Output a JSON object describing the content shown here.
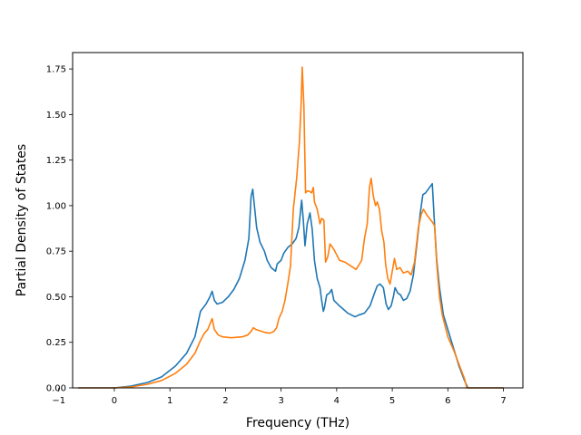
{
  "chart_data": {
    "type": "line",
    "title": "",
    "xlabel": "Frequency (THz)",
    "ylabel": "Partial Density of States",
    "xlim": [
      -0.75,
      7.35
    ],
    "ylim": [
      0.0,
      1.84
    ],
    "xticks": [
      -1,
      0,
      1,
      2,
      3,
      4,
      5,
      6,
      7
    ],
    "xtick_labels": [
      "−1",
      "0",
      "1",
      "2",
      "3",
      "4",
      "5",
      "6",
      "7"
    ],
    "yticks": [
      0.0,
      0.25,
      0.5,
      0.75,
      1.0,
      1.25,
      1.5,
      1.75
    ],
    "ytick_labels": [
      "0.00",
      "0.25",
      "0.50",
      "0.75",
      "1.00",
      "1.25",
      "1.50",
      "1.75"
    ],
    "grid": false,
    "legend": "none",
    "series": [
      {
        "color": "#1f77b4",
        "points": [
          [
            -0.65,
            0.0
          ],
          [
            0.0,
            0.0
          ],
          [
            0.3,
            0.01
          ],
          [
            0.6,
            0.03
          ],
          [
            0.85,
            0.06
          ],
          [
            1.1,
            0.12
          ],
          [
            1.3,
            0.19
          ],
          [
            1.45,
            0.28
          ],
          [
            1.55,
            0.42
          ],
          [
            1.65,
            0.46
          ],
          [
            1.72,
            0.5
          ],
          [
            1.76,
            0.53
          ],
          [
            1.8,
            0.48
          ],
          [
            1.85,
            0.46
          ],
          [
            1.95,
            0.47
          ],
          [
            2.05,
            0.5
          ],
          [
            2.15,
            0.54
          ],
          [
            2.25,
            0.6
          ],
          [
            2.35,
            0.7
          ],
          [
            2.42,
            0.82
          ],
          [
            2.46,
            1.05
          ],
          [
            2.49,
            1.09
          ],
          [
            2.52,
            1.0
          ],
          [
            2.56,
            0.88
          ],
          [
            2.62,
            0.8
          ],
          [
            2.7,
            0.75
          ],
          [
            2.75,
            0.7
          ],
          [
            2.82,
            0.66
          ],
          [
            2.9,
            0.64
          ],
          [
            2.93,
            0.68
          ],
          [
            3.0,
            0.7
          ],
          [
            3.05,
            0.74
          ],
          [
            3.12,
            0.77
          ],
          [
            3.2,
            0.79
          ],
          [
            3.27,
            0.82
          ],
          [
            3.32,
            0.88
          ],
          [
            3.37,
            1.03
          ],
          [
            3.4,
            0.92
          ],
          [
            3.43,
            0.78
          ],
          [
            3.47,
            0.9
          ],
          [
            3.52,
            0.96
          ],
          [
            3.56,
            0.87
          ],
          [
            3.6,
            0.7
          ],
          [
            3.65,
            0.6
          ],
          [
            3.7,
            0.55
          ],
          [
            3.73,
            0.48
          ],
          [
            3.76,
            0.42
          ],
          [
            3.78,
            0.44
          ],
          [
            3.82,
            0.51
          ],
          [
            3.87,
            0.52
          ],
          [
            3.91,
            0.54
          ],
          [
            3.95,
            0.48
          ],
          [
            4.05,
            0.45
          ],
          [
            4.2,
            0.41
          ],
          [
            4.33,
            0.39
          ],
          [
            4.4,
            0.4
          ],
          [
            4.5,
            0.41
          ],
          [
            4.6,
            0.45
          ],
          [
            4.68,
            0.52
          ],
          [
            4.73,
            0.56
          ],
          [
            4.78,
            0.57
          ],
          [
            4.84,
            0.55
          ],
          [
            4.89,
            0.46
          ],
          [
            4.93,
            0.43
          ],
          [
            4.98,
            0.45
          ],
          [
            5.02,
            0.5
          ],
          [
            5.05,
            0.55
          ],
          [
            5.1,
            0.52
          ],
          [
            5.15,
            0.51
          ],
          [
            5.2,
            0.48
          ],
          [
            5.26,
            0.49
          ],
          [
            5.32,
            0.53
          ],
          [
            5.38,
            0.62
          ],
          [
            5.44,
            0.78
          ],
          [
            5.5,
            0.95
          ],
          [
            5.55,
            1.06
          ],
          [
            5.6,
            1.07
          ],
          [
            5.67,
            1.1
          ],
          [
            5.72,
            1.12
          ],
          [
            5.76,
            0.9
          ],
          [
            5.8,
            0.7
          ],
          [
            5.85,
            0.55
          ],
          [
            5.92,
            0.4
          ],
          [
            6.0,
            0.32
          ],
          [
            6.1,
            0.22
          ],
          [
            6.2,
            0.12
          ],
          [
            6.3,
            0.04
          ],
          [
            6.36,
            0.0
          ],
          [
            7.0,
            0.0
          ]
        ]
      },
      {
        "color": "#ff7f0e",
        "points": [
          [
            -0.65,
            0.0
          ],
          [
            0.0,
            0.0
          ],
          [
            0.3,
            0.005
          ],
          [
            0.6,
            0.02
          ],
          [
            0.85,
            0.04
          ],
          [
            1.1,
            0.08
          ],
          [
            1.3,
            0.13
          ],
          [
            1.45,
            0.19
          ],
          [
            1.55,
            0.26
          ],
          [
            1.62,
            0.3
          ],
          [
            1.68,
            0.32
          ],
          [
            1.72,
            0.35
          ],
          [
            1.76,
            0.38
          ],
          [
            1.8,
            0.32
          ],
          [
            1.87,
            0.29
          ],
          [
            1.95,
            0.28
          ],
          [
            2.1,
            0.275
          ],
          [
            2.3,
            0.28
          ],
          [
            2.4,
            0.29
          ],
          [
            2.46,
            0.31
          ],
          [
            2.5,
            0.33
          ],
          [
            2.55,
            0.32
          ],
          [
            2.7,
            0.305
          ],
          [
            2.8,
            0.3
          ],
          [
            2.87,
            0.31
          ],
          [
            2.92,
            0.33
          ],
          [
            2.96,
            0.38
          ],
          [
            3.02,
            0.42
          ],
          [
            3.07,
            0.48
          ],
          [
            3.12,
            0.57
          ],
          [
            3.17,
            0.67
          ],
          [
            3.22,
            0.98
          ],
          [
            3.28,
            1.15
          ],
          [
            3.33,
            1.35
          ],
          [
            3.36,
            1.55
          ],
          [
            3.38,
            1.76
          ],
          [
            3.41,
            1.55
          ],
          [
            3.44,
            1.07
          ],
          [
            3.47,
            1.08
          ],
          [
            3.5,
            1.08
          ],
          [
            3.55,
            1.07
          ],
          [
            3.58,
            1.1
          ],
          [
            3.6,
            1.02
          ],
          [
            3.65,
            0.98
          ],
          [
            3.7,
            0.9
          ],
          [
            3.73,
            0.93
          ],
          [
            3.77,
            0.92
          ],
          [
            3.8,
            0.69
          ],
          [
            3.84,
            0.72
          ],
          [
            3.88,
            0.79
          ],
          [
            3.95,
            0.76
          ],
          [
            4.05,
            0.7
          ],
          [
            4.15,
            0.69
          ],
          [
            4.25,
            0.67
          ],
          [
            4.35,
            0.65
          ],
          [
            4.45,
            0.7
          ],
          [
            4.5,
            0.82
          ],
          [
            4.55,
            0.9
          ],
          [
            4.59,
            1.1
          ],
          [
            4.62,
            1.15
          ],
          [
            4.66,
            1.05
          ],
          [
            4.7,
            1.0
          ],
          [
            4.73,
            1.02
          ],
          [
            4.77,
            0.98
          ],
          [
            4.81,
            0.86
          ],
          [
            4.85,
            0.8
          ],
          [
            4.88,
            0.68
          ],
          [
            4.92,
            0.6
          ],
          [
            4.96,
            0.57
          ],
          [
            5.0,
            0.64
          ],
          [
            5.04,
            0.71
          ],
          [
            5.08,
            0.65
          ],
          [
            5.14,
            0.66
          ],
          [
            5.2,
            0.63
          ],
          [
            5.28,
            0.64
          ],
          [
            5.34,
            0.62
          ],
          [
            5.4,
            0.69
          ],
          [
            5.47,
            0.88
          ],
          [
            5.52,
            0.95
          ],
          [
            5.56,
            0.98
          ],
          [
            5.62,
            0.95
          ],
          [
            5.72,
            0.91
          ],
          [
            5.76,
            0.89
          ],
          [
            5.8,
            0.68
          ],
          [
            5.85,
            0.5
          ],
          [
            5.9,
            0.4
          ],
          [
            6.0,
            0.28
          ],
          [
            6.1,
            0.21
          ],
          [
            6.2,
            0.13
          ],
          [
            6.3,
            0.05
          ],
          [
            6.34,
            0.0
          ],
          [
            7.0,
            0.0
          ]
        ]
      }
    ]
  }
}
